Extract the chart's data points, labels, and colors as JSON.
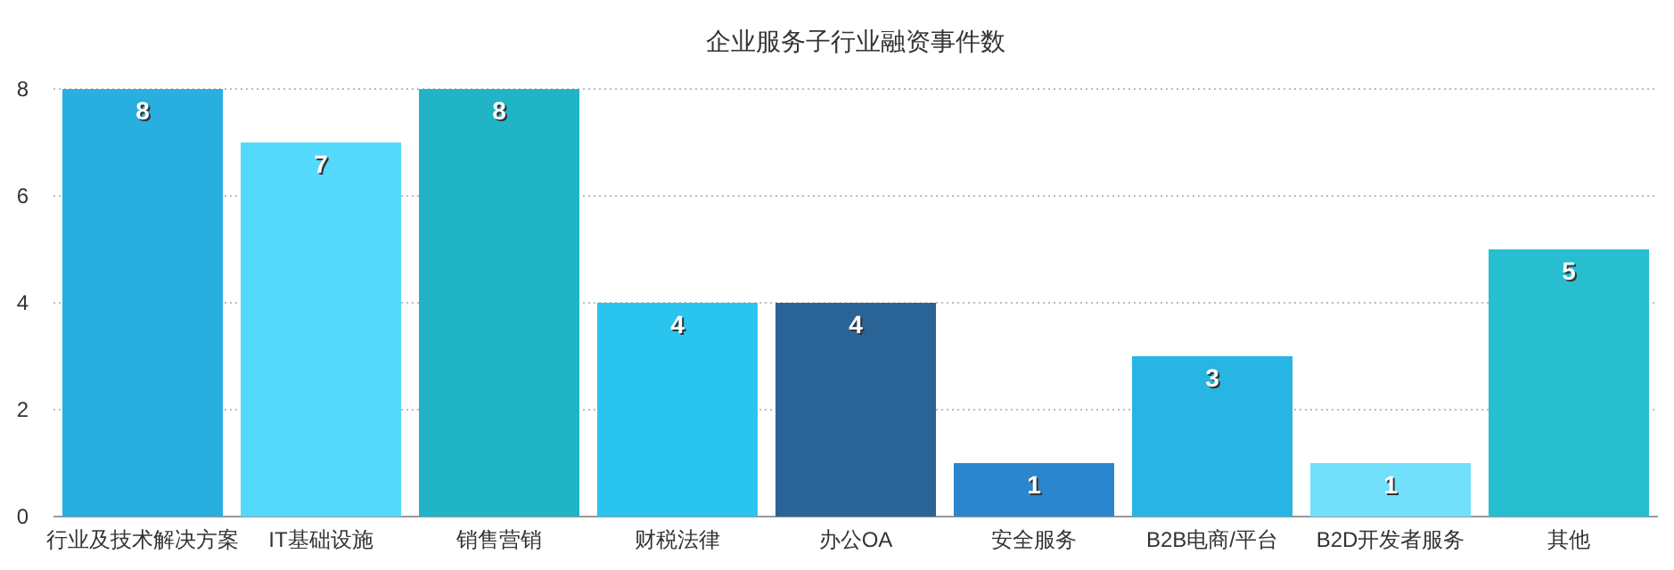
{
  "chart_data": {
    "type": "bar",
    "title": "企业服务子行业融资事件数",
    "categories": [
      "行业及技术解决方案",
      "IT基础设施",
      "销售营销",
      "财税法律",
      "办公OA",
      "安全服务",
      "B2B电商/平台",
      "B2D开发者服务",
      "其他"
    ],
    "values": [
      8,
      7,
      8,
      4,
      4,
      1,
      3,
      1,
      5
    ],
    "colors": [
      "#29aee0",
      "#52d9fb",
      "#21b4c6",
      "#29c5ef",
      "#2a6496",
      "#2b86cd",
      "#29b5e3",
      "#72e0fb",
      "#27bfd0"
    ],
    "ylim": [
      0,
      8
    ],
    "yticks": [
      0,
      2,
      4,
      6,
      8
    ],
    "grid": "y",
    "data_labels": true
  }
}
